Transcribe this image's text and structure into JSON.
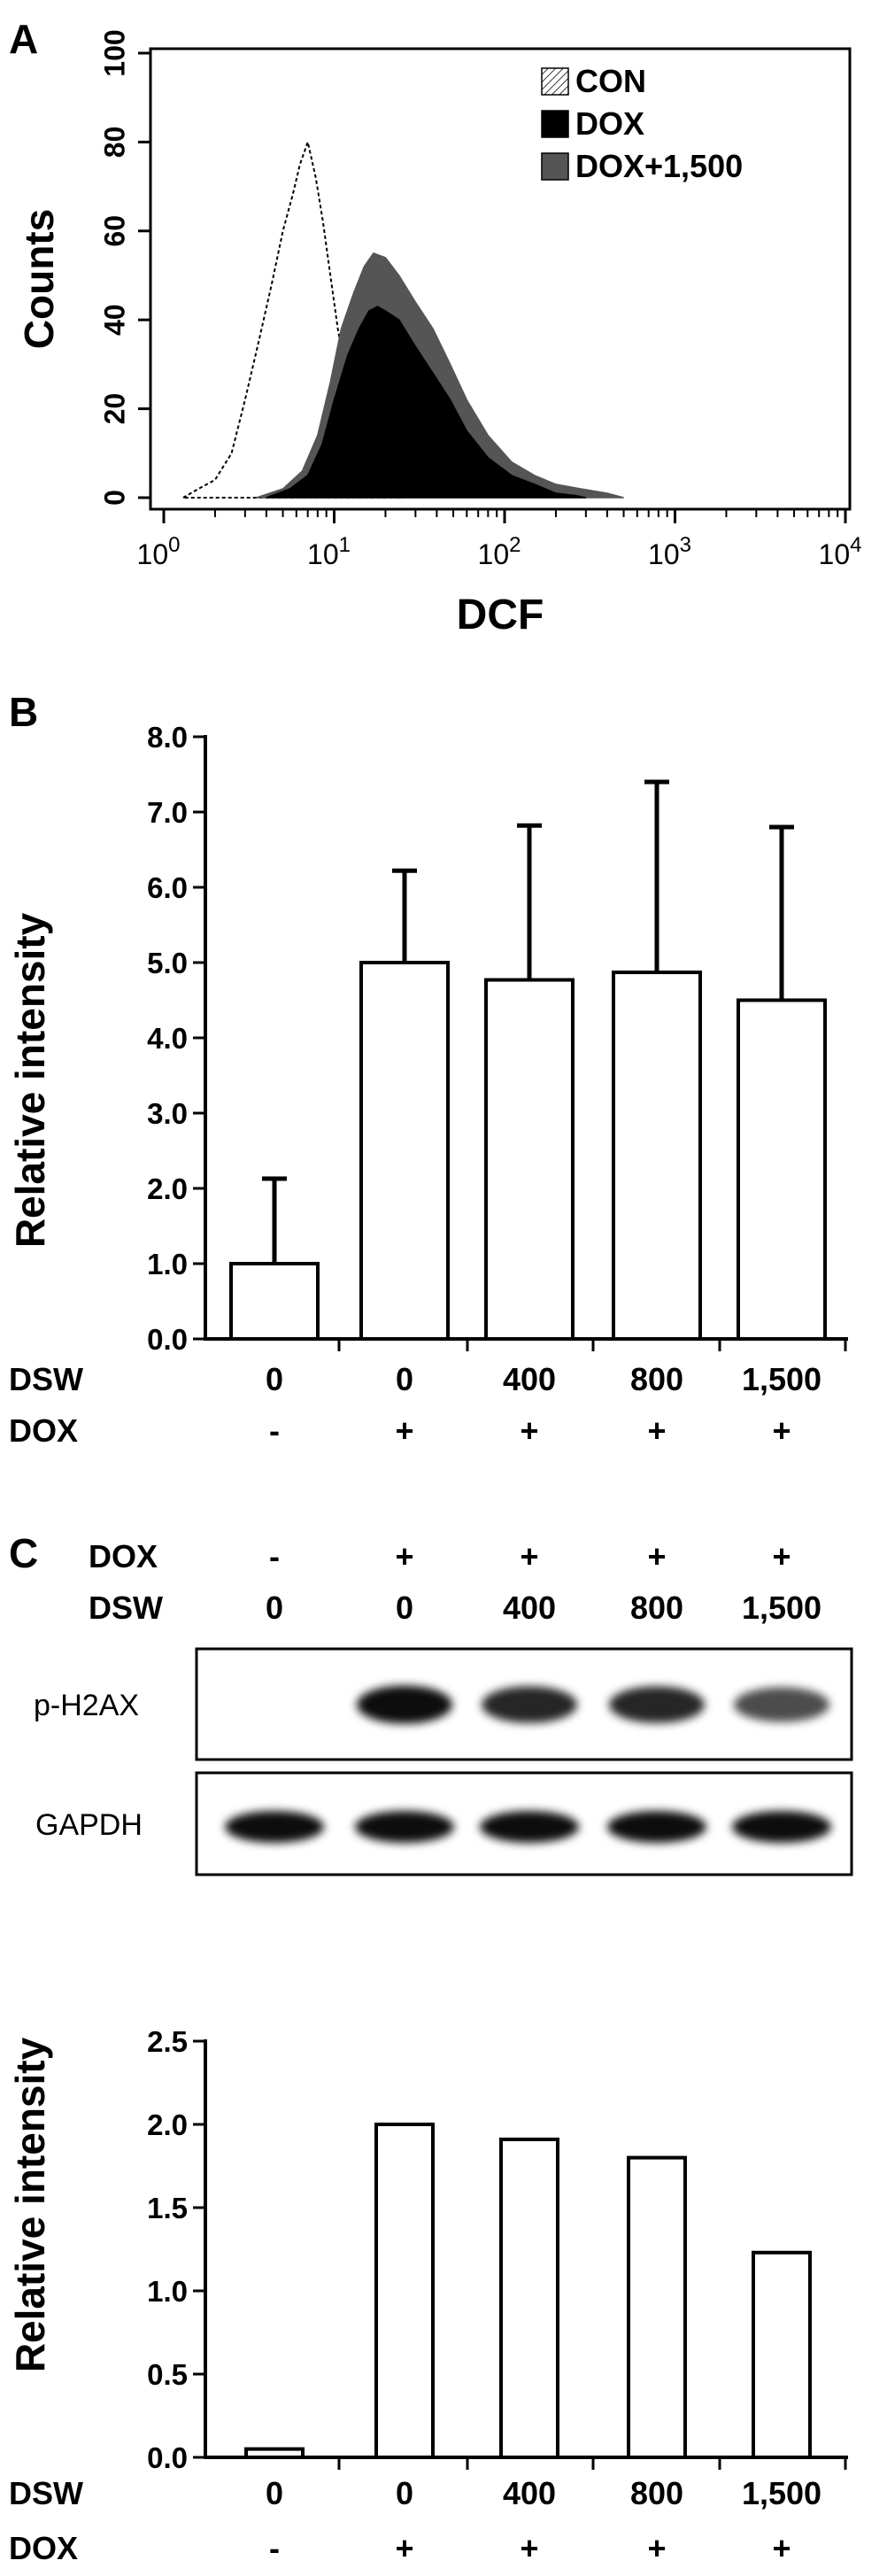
{
  "panels": {
    "A": "A",
    "B": "B",
    "C": "C"
  },
  "chart_data": [
    {
      "panel": "A",
      "type": "area",
      "xlabel": "DCF",
      "ylabel": "Counts",
      "xscale": "log",
      "xlim": [
        1,
        10000
      ],
      "ylim": [
        0,
        100
      ],
      "x_ticks": [
        1,
        10,
        100,
        1000,
        10000
      ],
      "x_tick_labels": [
        {
          "base": "10",
          "exp": "0"
        },
        {
          "base": "10",
          "exp": "1"
        },
        {
          "base": "10",
          "exp": "2"
        },
        {
          "base": "10",
          "exp": "3"
        },
        {
          "base": "10",
          "exp": "4"
        }
      ],
      "y_ticks": [
        "0",
        "20",
        "40",
        "60",
        "80",
        "100"
      ],
      "legend_position": "top-right",
      "series": [
        {
          "name": "CON",
          "style": "hatched-dashed-outline",
          "color": "#000000",
          "x": [
            1.3,
            1.6,
            2.0,
            2.5,
            3.0,
            3.6,
            4.3,
            5.0,
            5.7,
            6.3,
            7.0,
            7.8,
            8.6,
            9.5,
            10.5,
            12,
            14,
            17,
            20,
            24
          ],
          "y": [
            0,
            2,
            4,
            10,
            22,
            35,
            48,
            60,
            68,
            75,
            80,
            72,
            62,
            50,
            38,
            26,
            14,
            6,
            2,
            0
          ]
        },
        {
          "name": "DOX+1,500",
          "style": "filled",
          "color": "#555555",
          "x": [
            3.5,
            5,
            6.5,
            8,
            9.5,
            11,
            13,
            15,
            17,
            20,
            24,
            30,
            38,
            48,
            60,
            80,
            110,
            150,
            200,
            280,
            400,
            500
          ],
          "y": [
            0,
            2,
            6,
            14,
            26,
            38,
            46,
            52,
            55,
            54,
            50,
            44,
            38,
            30,
            22,
            14,
            8,
            5,
            3,
            2,
            1,
            0
          ]
        },
        {
          "name": "DOX",
          "style": "filled",
          "color": "#000000",
          "x": [
            4,
            5.5,
            7,
            8.5,
            10,
            12,
            14,
            16,
            18,
            20,
            24,
            30,
            38,
            48,
            60,
            80,
            110,
            150,
            200,
            260,
            300
          ],
          "y": [
            0,
            2,
            5,
            12,
            22,
            32,
            38,
            42,
            43,
            42,
            40,
            34,
            28,
            22,
            15,
            9,
            5,
            3,
            1,
            0.5,
            0
          ]
        }
      ]
    },
    {
      "panel": "B",
      "type": "bar",
      "ylabel": "Relative intensity",
      "ylim": [
        0,
        8
      ],
      "y_ticks": [
        "0.0",
        "1.0",
        "2.0",
        "3.0",
        "4.0",
        "5.0",
        "6.0",
        "7.0",
        "8.0"
      ],
      "row_labels": [
        "DSW",
        "DOX"
      ],
      "categories_dsw": [
        "0",
        "0",
        "400",
        "800",
        "1,500"
      ],
      "categories_dox": [
        "-",
        "+",
        "+",
        "+",
        "+"
      ],
      "values": [
        1.0,
        5.0,
        4.77,
        4.87,
        4.5
      ],
      "errors": [
        1.13,
        1.22,
        2.05,
        2.53,
        2.3
      ]
    },
    {
      "panel": "C",
      "type": "bar",
      "ylabel": "Relative intensity",
      "ylim": [
        0,
        2.5
      ],
      "y_ticks": [
        "0.0",
        "0.5",
        "1.0",
        "1.5",
        "2.0",
        "2.5"
      ],
      "row_labels": [
        "DSW",
        "DOX"
      ],
      "categories_dsw": [
        "0",
        "0",
        "400",
        "800",
        "1,500"
      ],
      "categories_dox": [
        "-",
        "+",
        "+",
        "+",
        "+"
      ],
      "values": [
        0.05,
        2.0,
        1.91,
        1.8,
        1.23
      ]
    }
  ],
  "blot": {
    "header_labels": [
      "DOX",
      "DSW"
    ],
    "dox": [
      "-",
      "+",
      "+",
      "+",
      "+"
    ],
    "dsw": [
      "0",
      "0",
      "400",
      "800",
      "1,500"
    ],
    "row_labels": [
      "p-H2AX",
      "GAPDH"
    ],
    "band_intensity_h2ax": [
      0.0,
      0.95,
      0.85,
      0.85,
      0.7
    ],
    "band_intensity_gapdh": [
      0.95,
      0.95,
      0.95,
      0.95,
      0.95
    ]
  }
}
